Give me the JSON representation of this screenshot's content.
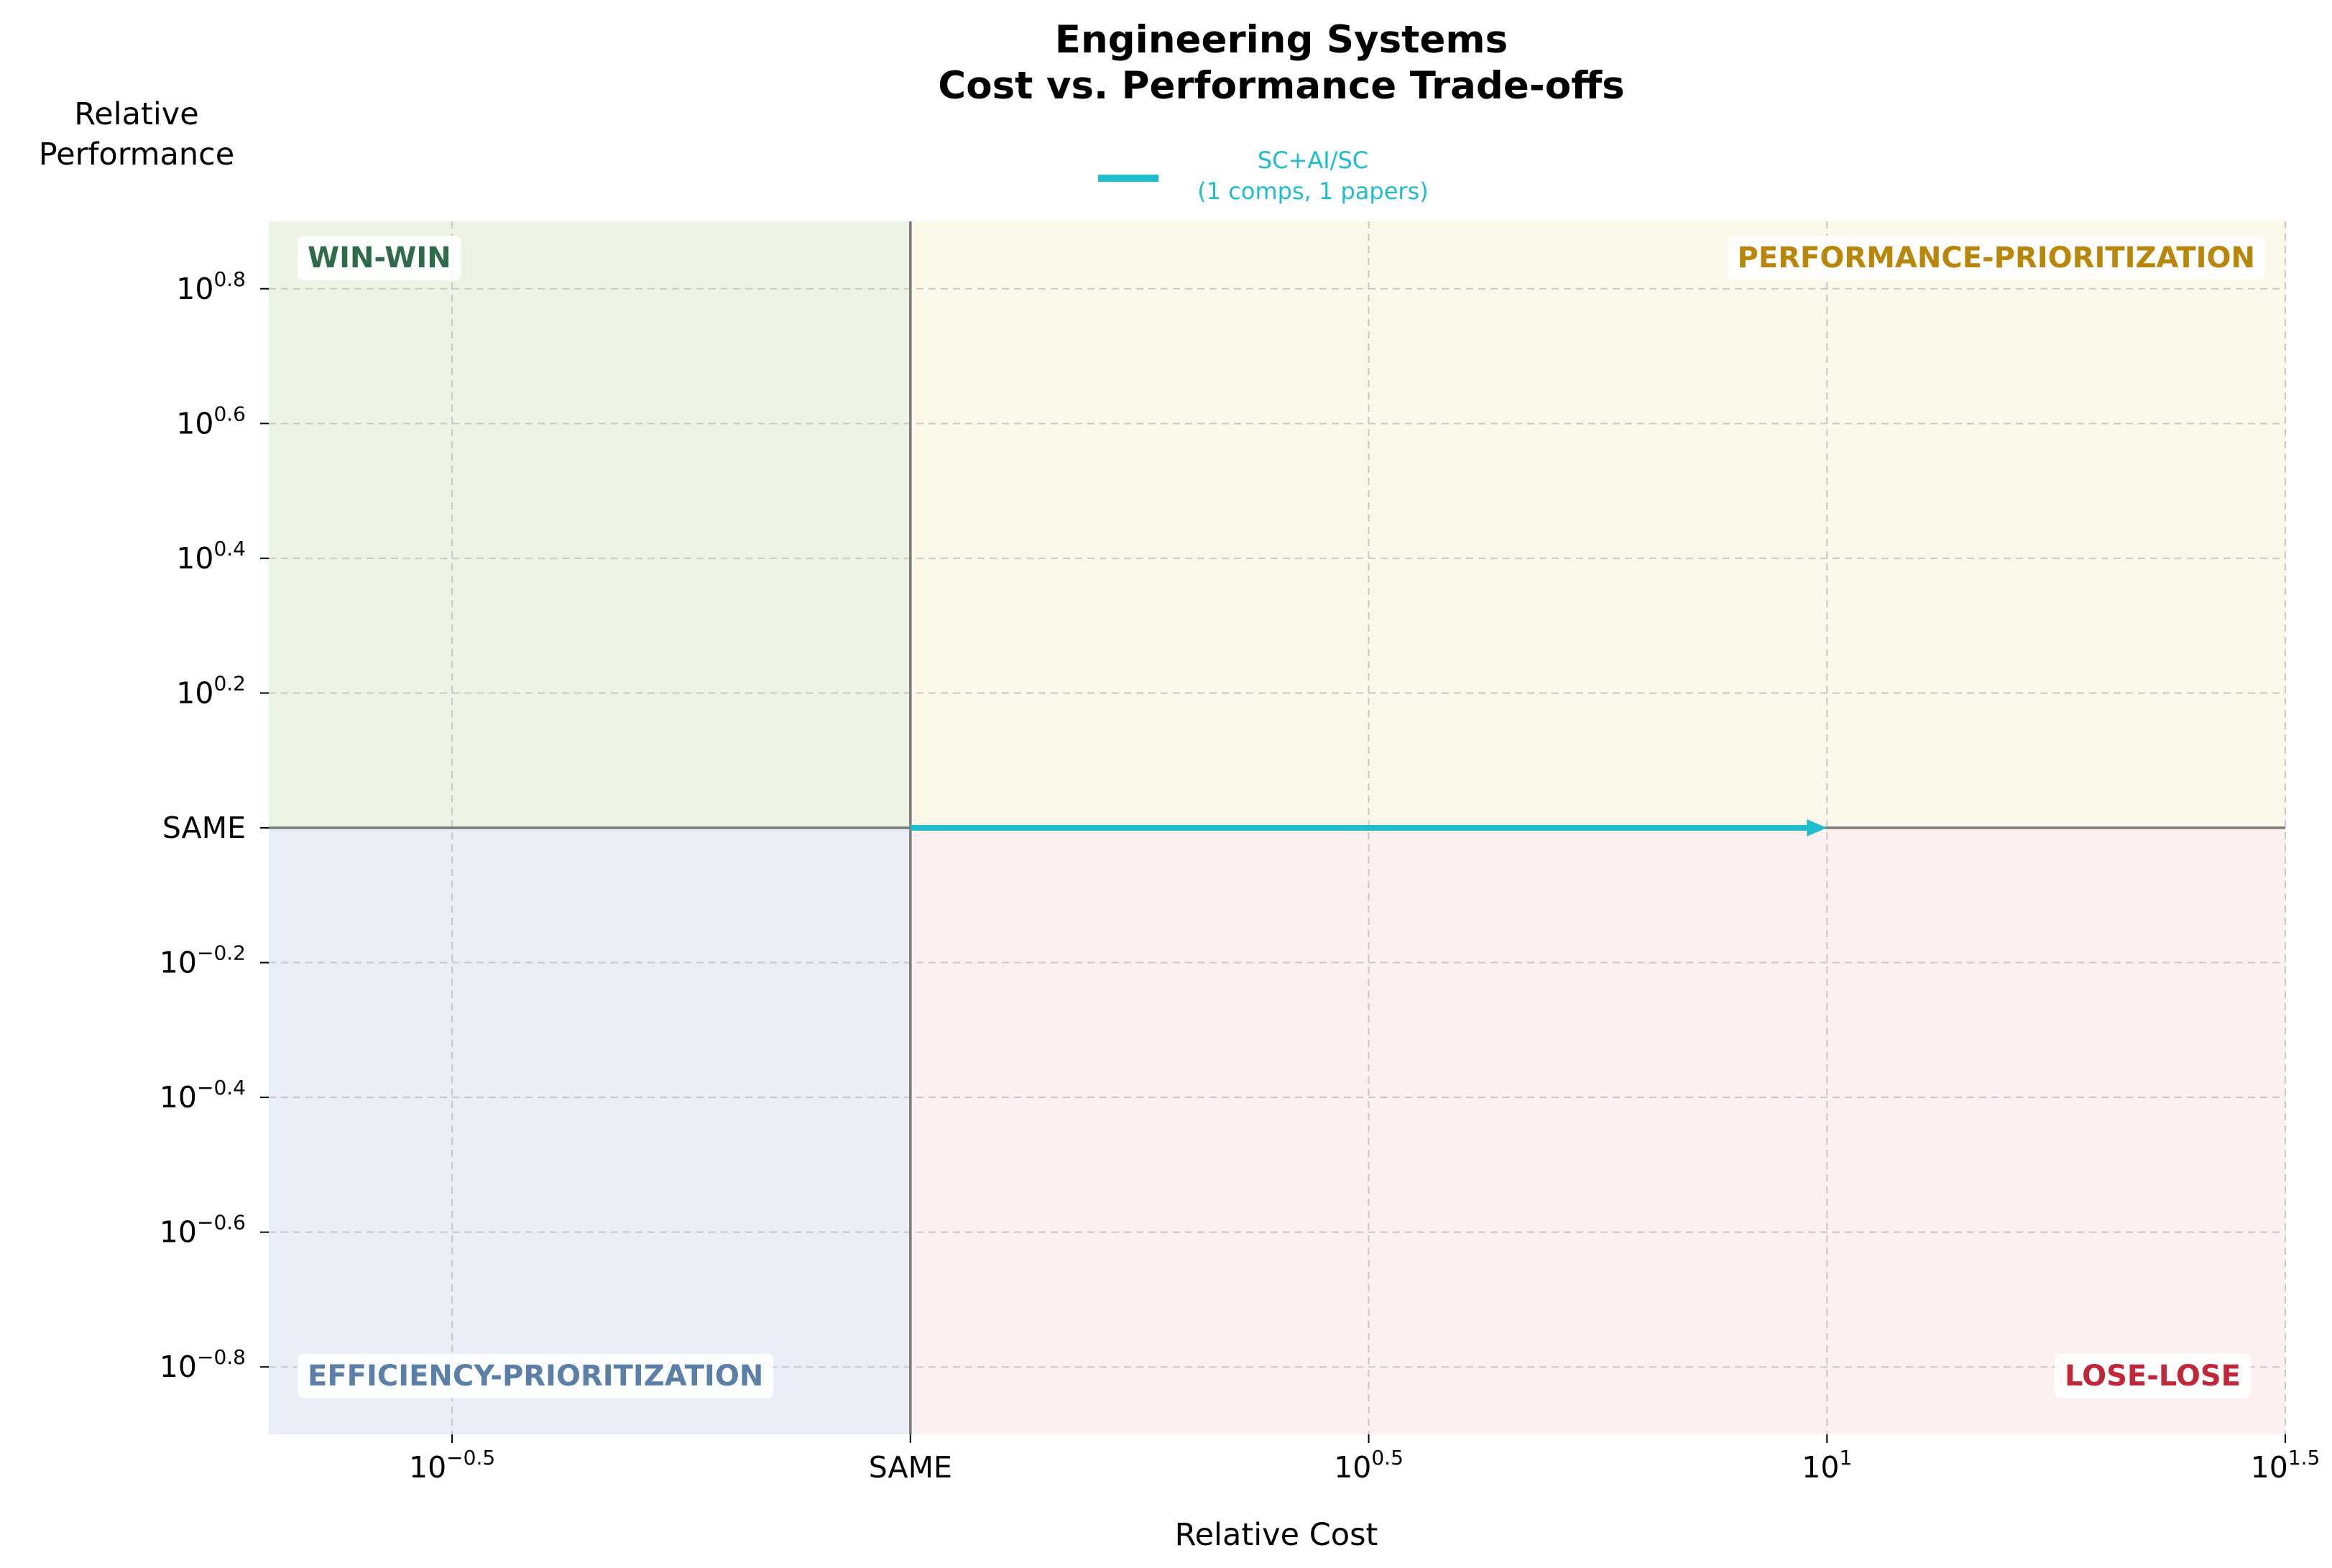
{
  "chart_data": {
    "type": "quadrant-arrow",
    "title_lines": [
      "Engineering Systems",
      "Cost vs. Performance Trade-offs"
    ],
    "xlabel": "Relative Cost",
    "ylabel_lines": [
      "Relative",
      "Performance"
    ],
    "x_scale": "log",
    "y_scale": "log",
    "xlim_log10": [
      -0.7,
      1.5
    ],
    "ylim_log10": [
      -0.9,
      0.9
    ],
    "grid": true,
    "legend_position": "top-center",
    "x_ticks": [
      {
        "log10": -0.5,
        "base": "10",
        "exp": "−0.5"
      },
      {
        "log10": 0,
        "base": "SAME",
        "exp": ""
      },
      {
        "log10": 0.5,
        "base": "10",
        "exp": "0.5"
      },
      {
        "log10": 1,
        "base": "10",
        "exp": "1"
      },
      {
        "log10": 1.5,
        "base": "10",
        "exp": "1.5"
      }
    ],
    "y_ticks": [
      {
        "log10": 0.8,
        "base": "10",
        "exp": "0.8"
      },
      {
        "log10": 0.6,
        "base": "10",
        "exp": "0.6"
      },
      {
        "log10": 0.4,
        "base": "10",
        "exp": "0.4"
      },
      {
        "log10": 0.2,
        "base": "10",
        "exp": "0.2"
      },
      {
        "log10": 0,
        "base": "SAME",
        "exp": ""
      },
      {
        "log10": -0.2,
        "base": "10",
        "exp": "−0.2"
      },
      {
        "log10": -0.4,
        "base": "10",
        "exp": "−0.4"
      },
      {
        "log10": -0.6,
        "base": "10",
        "exp": "−0.6"
      },
      {
        "log10": -0.8,
        "base": "10",
        "exp": "−0.8"
      }
    ],
    "quadrants": [
      {
        "key": "win-win",
        "label": "WIN-WIN",
        "fill": "#ecf4e6",
        "text_color": "#2e6b4a",
        "region": "top-left"
      },
      {
        "key": "performance-prioritization",
        "label": "PERFORMANCE-PRIORITIZATION",
        "fill": "#fbf8ea",
        "text_color": "#b8860b",
        "region": "top-right"
      },
      {
        "key": "efficiency-prioritization",
        "label": "EFFICIENCY-PRIORITIZATION",
        "fill": "#e9eef7",
        "text_color": "#5b7fa6",
        "region": "bottom-left"
      },
      {
        "key": "lose-lose",
        "label": "LOSE-LOSE",
        "fill": "#fdf0f0",
        "text_color": "#c0283a",
        "region": "bottom-right"
      }
    ],
    "series": [
      {
        "name": "SC+AI/SC",
        "legend_sub": "(1 comps, 1 papers)",
        "color": "#1fbdcc",
        "from": {
          "x": 1,
          "y": 1
        },
        "to": {
          "x": 10,
          "y": 1
        }
      }
    ]
  }
}
